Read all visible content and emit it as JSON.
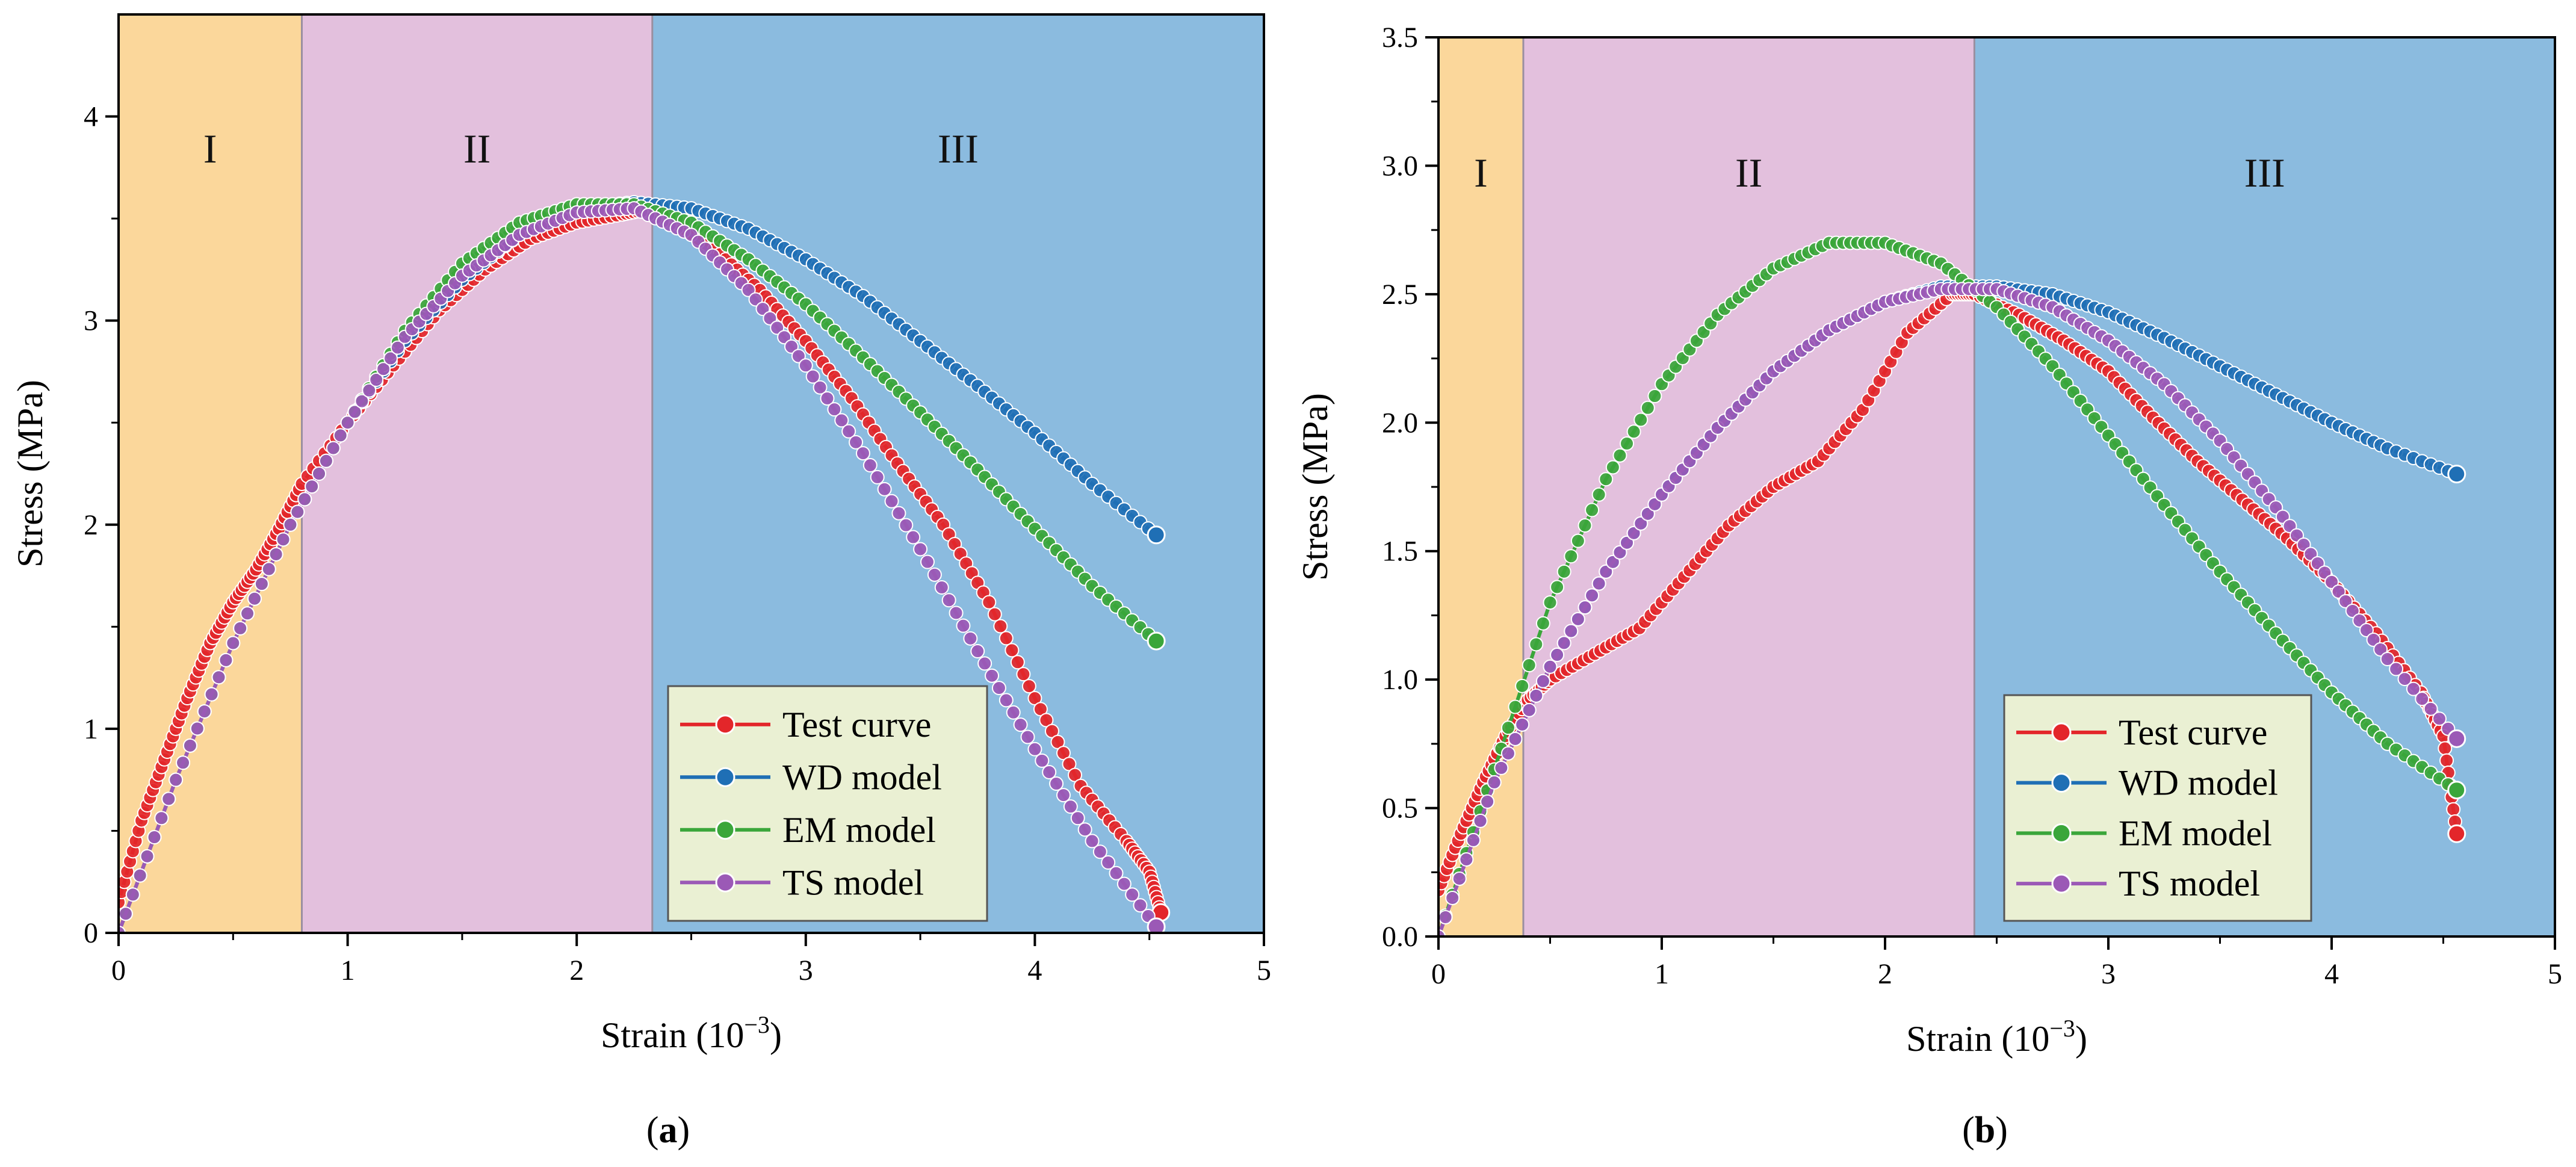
{
  "chart_data": [
    {
      "type": "line",
      "panel_label": "a",
      "xlabel": "Strain (10",
      "xlabel_exp": "−3",
      "xlabel_close": ")",
      "ylabel": "Stress (MPa)",
      "xlim": [
        0,
        5
      ],
      "ylim": [
        0,
        4.5
      ],
      "xticks": [
        "0",
        "1",
        "2",
        "3",
        "4",
        "5"
      ],
      "xtick_values": [
        0,
        1,
        2,
        3,
        4,
        5
      ],
      "yticks": [
        "0",
        "1",
        "2",
        "3",
        "4"
      ],
      "ytick_values": [
        0,
        1,
        2,
        3,
        4
      ],
      "regions": [
        {
          "label": "I",
          "x0": 0,
          "x1": 0.8,
          "color": "#fbd79b"
        },
        {
          "label": "II",
          "x0": 0.8,
          "x1": 2.33,
          "color": "#e3c0dd"
        },
        {
          "label": "III",
          "x0": 2.33,
          "x1": 5,
          "color": "#8bbbdf"
        }
      ],
      "legend_position": "bottom-right",
      "series": [
        {
          "name": "Test curve",
          "color": "#e3262a",
          "x": [
            0,
            0.1,
            0.2,
            0.3,
            0.4,
            0.5,
            0.6,
            0.7,
            0.8,
            1.0,
            1.2,
            1.4,
            1.6,
            1.8,
            2.0,
            2.2,
            2.33,
            2.6,
            2.8,
            3.0,
            3.2,
            3.4,
            3.6,
            3.8,
            4.0,
            4.2,
            4.4,
            4.5,
            4.55
          ],
          "y": [
            0.15,
            0.55,
            0.85,
            1.15,
            1.42,
            1.62,
            1.78,
            1.98,
            2.2,
            2.5,
            2.78,
            3.05,
            3.25,
            3.4,
            3.48,
            3.52,
            3.55,
            3.35,
            3.15,
            2.9,
            2.62,
            2.3,
            2.0,
            1.62,
            1.15,
            0.72,
            0.45,
            0.3,
            0.1
          ]
        },
        {
          "name": "WD model",
          "color": "#1f6fb5",
          "x": [
            0,
            0.25,
            0.5,
            0.75,
            1.0,
            1.25,
            1.5,
            1.75,
            2.0,
            2.25,
            2.5,
            2.75,
            3.0,
            3.25,
            3.5,
            3.75,
            4.0,
            4.25,
            4.53
          ],
          "y": [
            0,
            0.75,
            1.42,
            2.0,
            2.5,
            2.9,
            3.2,
            3.42,
            3.55,
            3.58,
            3.55,
            3.45,
            3.3,
            3.12,
            2.9,
            2.68,
            2.45,
            2.2,
            1.95
          ]
        },
        {
          "name": "EM model",
          "color": "#3aa63a",
          "x": [
            0,
            0.25,
            0.5,
            0.75,
            1.0,
            1.25,
            1.5,
            1.75,
            2.0,
            2.25,
            2.5,
            2.75,
            3.0,
            3.25,
            3.5,
            3.75,
            4.0,
            4.25,
            4.53
          ],
          "y": [
            0,
            0.75,
            1.42,
            2.0,
            2.5,
            2.95,
            3.28,
            3.48,
            3.57,
            3.57,
            3.48,
            3.3,
            3.08,
            2.82,
            2.55,
            2.27,
            1.98,
            1.7,
            1.43
          ]
        },
        {
          "name": "TS model",
          "color": "#9b59b6",
          "x": [
            0,
            0.25,
            0.5,
            0.75,
            1.0,
            1.25,
            1.5,
            1.75,
            2.0,
            2.25,
            2.5,
            2.75,
            3.0,
            3.25,
            3.5,
            3.75,
            4.0,
            4.25,
            4.53
          ],
          "y": [
            0,
            0.75,
            1.42,
            2.0,
            2.5,
            2.92,
            3.22,
            3.42,
            3.53,
            3.55,
            3.42,
            3.15,
            2.78,
            2.35,
            1.88,
            1.38,
            0.9,
            0.45,
            0.03
          ]
        }
      ]
    },
    {
      "type": "line",
      "panel_label": "b",
      "xlabel": "Strain (10",
      "xlabel_exp": "−3",
      "xlabel_close": ")",
      "ylabel": "Stress (MPa)",
      "xlim": [
        0,
        5
      ],
      "ylim": [
        0,
        3.5
      ],
      "xticks": [
        "0",
        "1",
        "2",
        "3",
        "4",
        "5"
      ],
      "xtick_values": [
        0,
        1,
        2,
        3,
        4,
        5
      ],
      "yticks": [
        "0.0",
        "0.5",
        "1.0",
        "1.5",
        "2.0",
        "2.5",
        "3.0",
        "3.5"
      ],
      "ytick_values": [
        0,
        0.5,
        1.0,
        1.5,
        2.0,
        2.5,
        3.0,
        3.5
      ],
      "regions": [
        {
          "label": "I",
          "x0": 0,
          "x1": 0.38,
          "color": "#fbd79b"
        },
        {
          "label": "II",
          "x0": 0.38,
          "x1": 2.4,
          "color": "#e3c0dd"
        },
        {
          "label": "III",
          "x0": 2.4,
          "x1": 5,
          "color": "#8bbbdf"
        }
      ],
      "legend_position": "bottom-right",
      "series": [
        {
          "name": "Test curve",
          "color": "#e3262a",
          "x": [
            0,
            0.1,
            0.2,
            0.3,
            0.4,
            0.5,
            0.7,
            0.9,
            1.1,
            1.3,
            1.5,
            1.7,
            1.9,
            2.1,
            2.3,
            2.4,
            2.6,
            2.8,
            3.0,
            3.2,
            3.4,
            3.6,
            3.8,
            4.0,
            4.2,
            4.4,
            4.5,
            4.56
          ],
          "y": [
            0.18,
            0.4,
            0.6,
            0.78,
            0.92,
            1.0,
            1.1,
            1.2,
            1.4,
            1.6,
            1.75,
            1.85,
            2.05,
            2.35,
            2.5,
            2.5,
            2.42,
            2.32,
            2.2,
            2.02,
            1.85,
            1.7,
            1.55,
            1.38,
            1.18,
            0.95,
            0.78,
            0.4
          ]
        },
        {
          "name": "WD model",
          "color": "#1f6fb5",
          "x": [
            0,
            0.25,
            0.5,
            0.75,
            1.0,
            1.25,
            1.5,
            1.75,
            2.0,
            2.25,
            2.5,
            2.75,
            3.0,
            3.25,
            3.5,
            3.75,
            4.0,
            4.25,
            4.56
          ],
          "y": [
            0,
            0.6,
            1.05,
            1.42,
            1.72,
            1.98,
            2.2,
            2.36,
            2.47,
            2.53,
            2.53,
            2.5,
            2.43,
            2.33,
            2.22,
            2.11,
            2.0,
            1.9,
            1.8
          ]
        },
        {
          "name": "EM model",
          "color": "#3aa63a",
          "x": [
            0,
            0.25,
            0.5,
            0.75,
            1.0,
            1.25,
            1.5,
            1.75,
            2.0,
            2.25,
            2.5,
            2.75,
            3.0,
            3.25,
            3.5,
            3.75,
            4.0,
            4.25,
            4.56
          ],
          "y": [
            0,
            0.65,
            1.3,
            1.78,
            2.15,
            2.42,
            2.6,
            2.7,
            2.7,
            2.62,
            2.45,
            2.22,
            1.95,
            1.68,
            1.42,
            1.18,
            0.95,
            0.75,
            0.57
          ]
        },
        {
          "name": "TS model",
          "color": "#9b59b6",
          "x": [
            0,
            0.25,
            0.5,
            0.75,
            1.0,
            1.25,
            1.5,
            1.75,
            2.0,
            2.25,
            2.5,
            2.75,
            3.0,
            3.25,
            3.5,
            3.75,
            4.0,
            4.25,
            4.56
          ],
          "y": [
            0,
            0.6,
            1.05,
            1.42,
            1.72,
            1.98,
            2.2,
            2.36,
            2.47,
            2.52,
            2.52,
            2.45,
            2.32,
            2.15,
            1.93,
            1.67,
            1.38,
            1.08,
            0.77
          ]
        }
      ]
    }
  ]
}
